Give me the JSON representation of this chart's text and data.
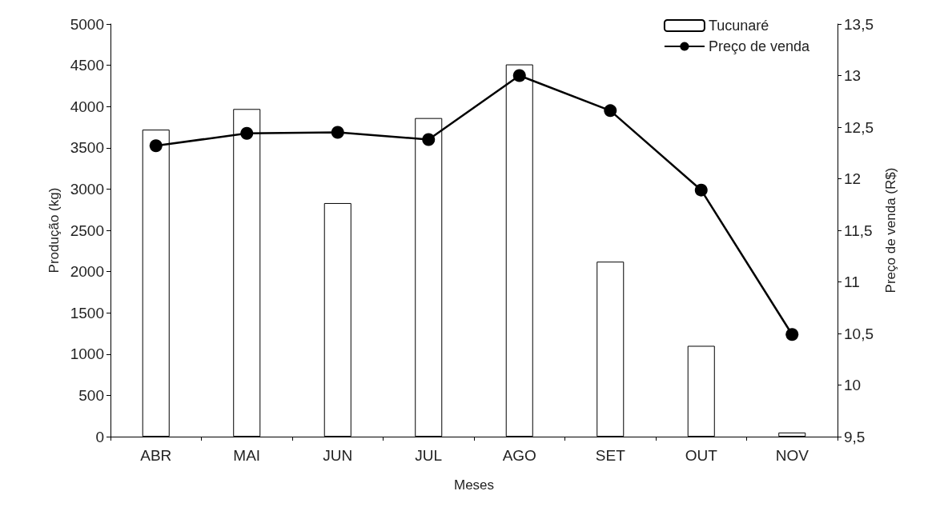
{
  "chart_data": {
    "type": "bar",
    "xlabel": "Meses",
    "ylabel": "Produção (kg)",
    "y2label": "Preço de venda (R$)",
    "categories": [
      "ABR",
      "MAI",
      "JUN",
      "JUL",
      "AGO",
      "SET",
      "OUT",
      "NOV"
    ],
    "series": [
      {
        "name": "Tucunaré",
        "color": "#ffffff",
        "values": [
          3720,
          3970,
          2830,
          3860,
          4510,
          2120,
          1100,
          50
        ]
      },
      {
        "name": "Preço de venda",
        "type": "line",
        "axis": "y2",
        "color": "#000000",
        "marker": "circle",
        "values": [
          12.32,
          12.44,
          12.45,
          12.38,
          13.0,
          12.66,
          11.89,
          10.49
        ]
      }
    ],
    "ylim": [
      0,
      5000
    ],
    "yticks": [
      0,
      500,
      1000,
      1500,
      2000,
      2500,
      3000,
      3500,
      4000,
      4500,
      5000
    ],
    "y2lim": [
      9.5,
      13.5
    ],
    "y2ticks": [
      {
        "value": 9.5,
        "label": "9,5"
      },
      10,
      {
        "value": 10.5,
        "label": "10,5"
      },
      11,
      {
        "value": 11.5,
        "label": "11,5"
      },
      12,
      {
        "value": 12.5,
        "label": "12,5"
      },
      13,
      {
        "value": 13.5,
        "label": "13,5"
      }
    ],
    "grid": false,
    "legend": "top right"
  }
}
